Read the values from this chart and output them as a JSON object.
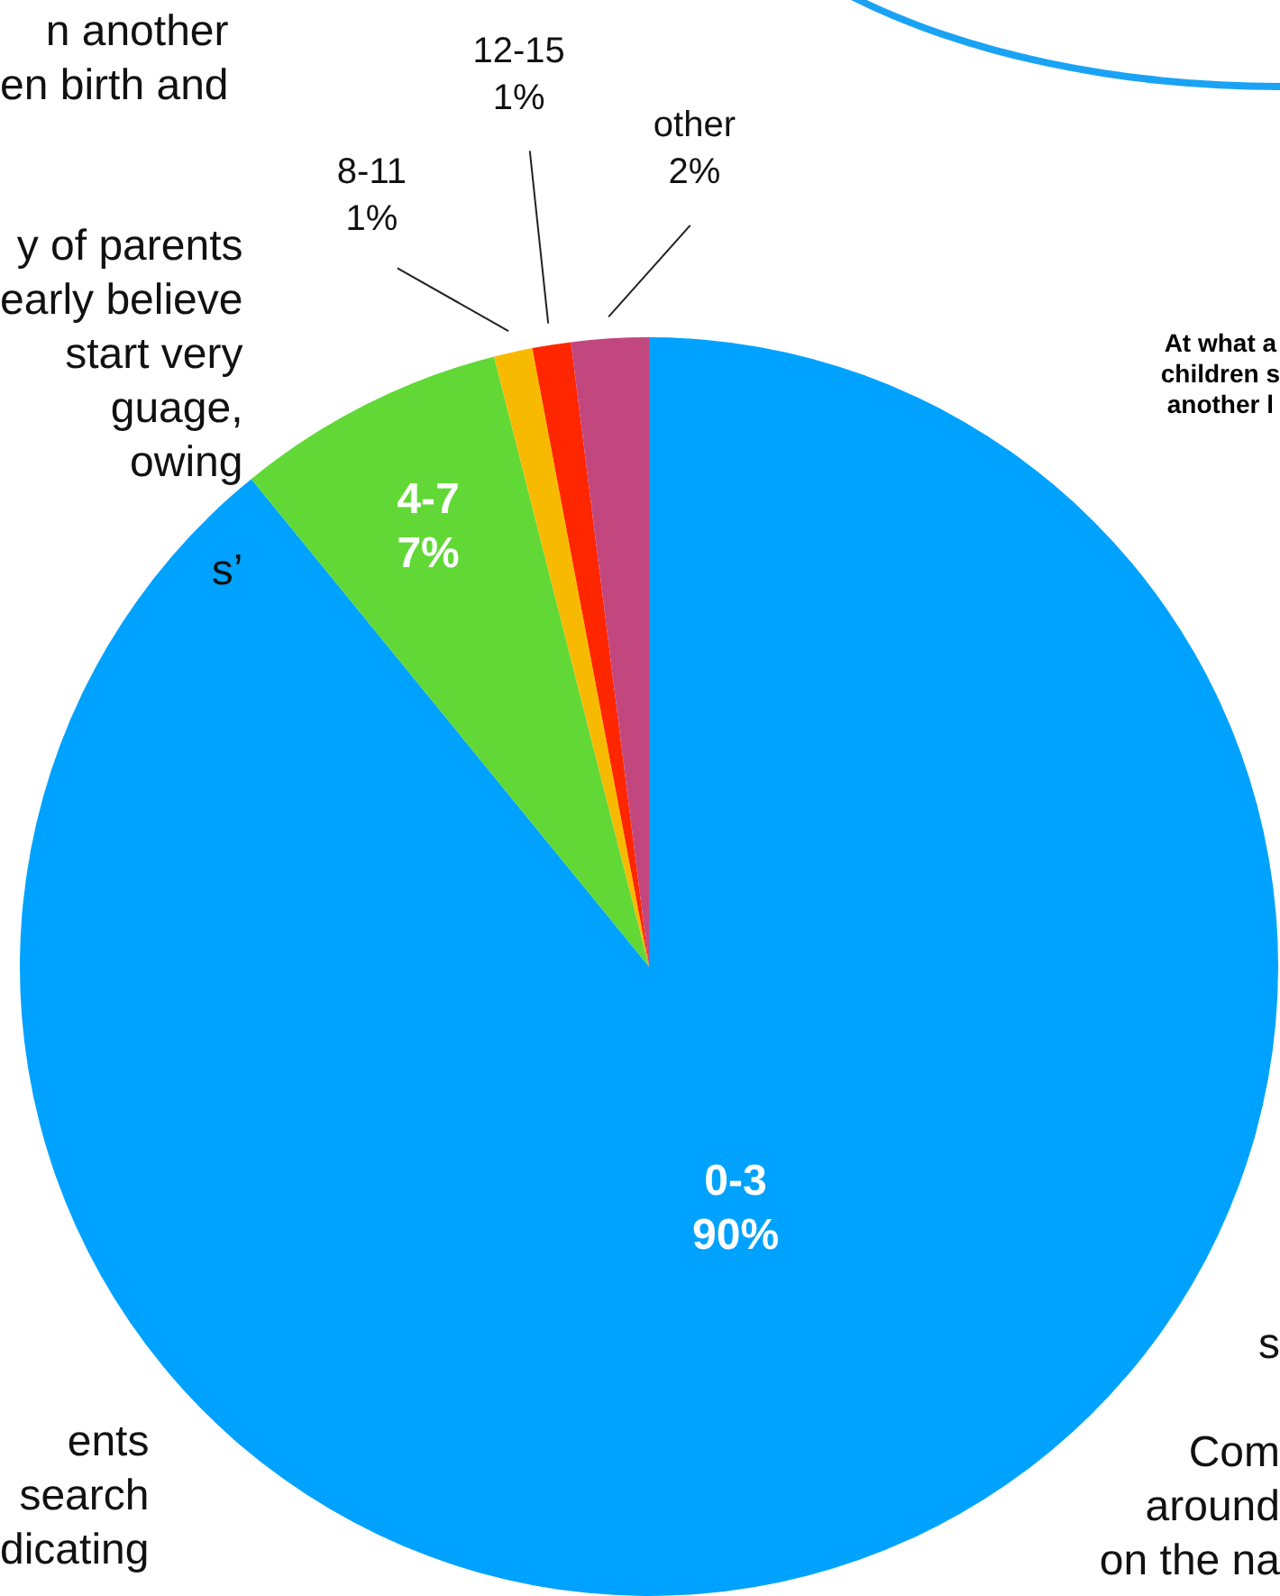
{
  "chart_data": {
    "type": "pie",
    "title": "At what a\nchildren s\nanother l",
    "categories": [
      "0-3",
      "4-7",
      "8-11",
      "12-15",
      "other"
    ],
    "values": [
      90,
      7,
      1,
      1,
      2
    ],
    "value_labels": [
      "90%",
      "7%",
      "1%",
      "1%",
      "2%"
    ],
    "colors": [
      "#00a2ff",
      "#61d836",
      "#f8ba00",
      "#ff2600",
      "#c2477f"
    ],
    "annotations": [
      "n another\nen birth and",
      "y of parents\nearly believe\nstart very\nguage,\nowing\n\ns’",
      "ents\nsearch\ndicating",
      "s\n\nCom\naround\non the na"
    ]
  }
}
